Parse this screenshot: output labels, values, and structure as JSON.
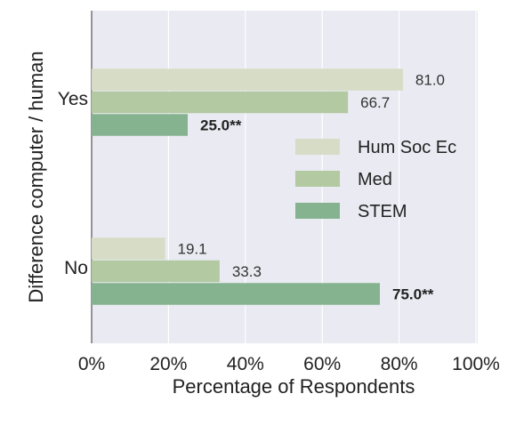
{
  "chart_data": {
    "type": "bar",
    "orientation": "horizontal",
    "categories": [
      "Yes",
      "No"
    ],
    "series": [
      {
        "name": "Hum Soc Ec",
        "color": "#d6dcc5",
        "values": [
          81.0,
          19.1
        ],
        "labels": [
          "81.0",
          "19.1"
        ],
        "bold": [
          false,
          false
        ]
      },
      {
        "name": "Med",
        "color": "#b3c9a2",
        "values": [
          66.7,
          33.3
        ],
        "labels": [
          "66.7",
          "33.3"
        ],
        "bold": [
          false,
          false
        ]
      },
      {
        "name": "STEM",
        "color": "#86b38f",
        "values": [
          25.0,
          75.0
        ],
        "labels": [
          "25.0**",
          "75.0**"
        ],
        "bold": [
          true,
          true
        ]
      }
    ],
    "xlabel": "Percentage of Respondents",
    "ylabel": "Difference computer / human",
    "xlim": [
      0,
      100
    ],
    "xticks": [
      "0%",
      "20%",
      "40%",
      "60%",
      "80%",
      "100%"
    ],
    "grid": true,
    "legend_position": "right"
  }
}
